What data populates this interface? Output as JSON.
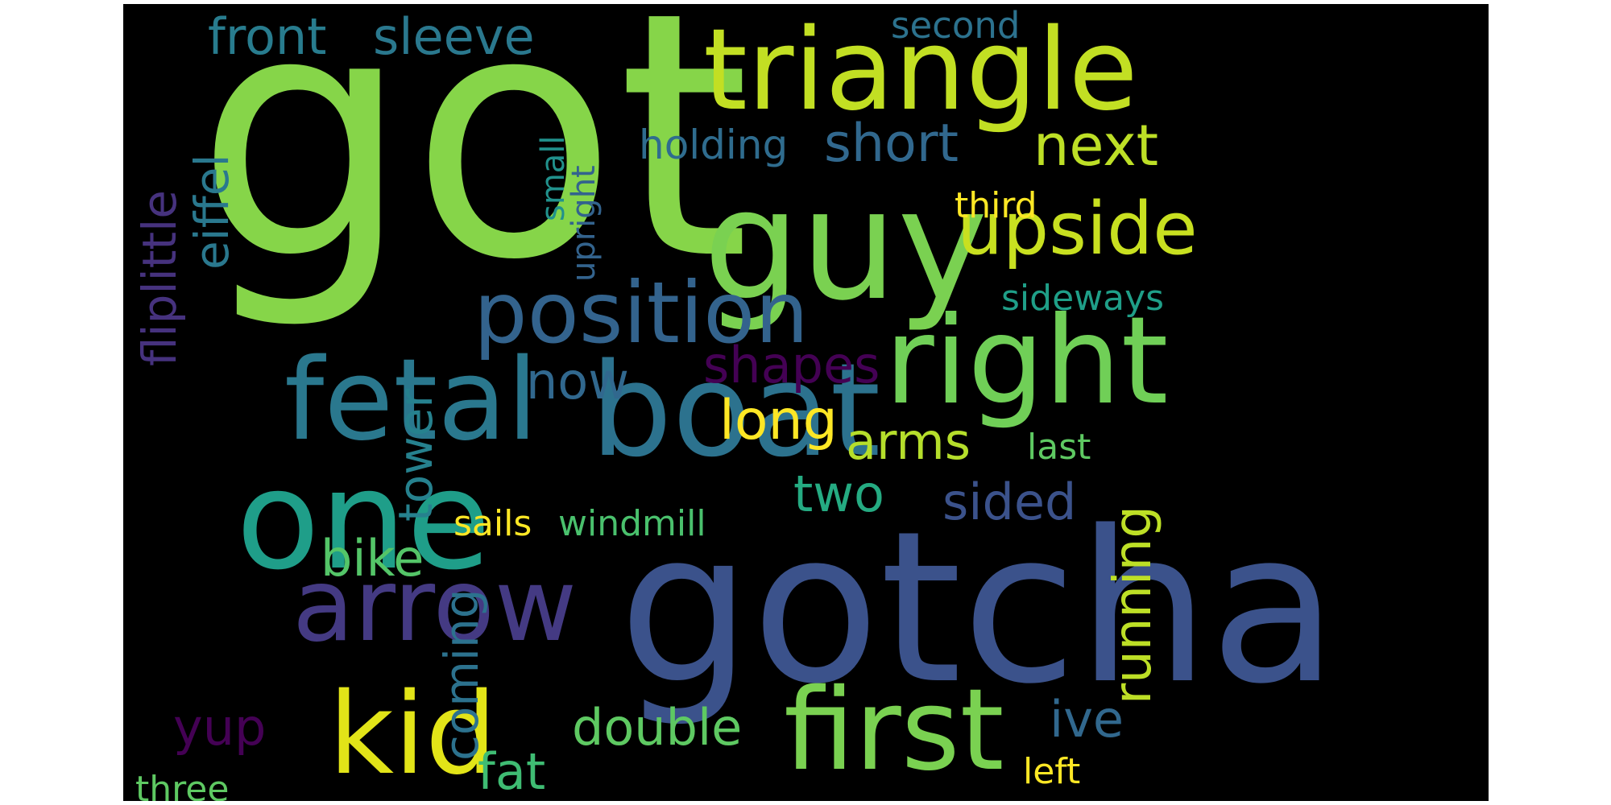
{
  "cloud": {
    "background": "#000000",
    "words": [
      {
        "text": "got",
        "color": "#86d549"
      },
      {
        "text": "gotcha",
        "color": "#3b528b"
      },
      {
        "text": "guy",
        "color": "#7ad151"
      },
      {
        "text": "triangle",
        "color": "#c2df23"
      },
      {
        "text": "boat",
        "color": "#2c728e"
      },
      {
        "text": "one",
        "color": "#1f9e89"
      },
      {
        "text": "right",
        "color": "#70cf57"
      },
      {
        "text": "first",
        "color": "#7ad151"
      },
      {
        "text": "fetal",
        "color": "#2a788e"
      },
      {
        "text": "arrow",
        "color": "#443a83"
      },
      {
        "text": "kid",
        "color": "#e2e418"
      },
      {
        "text": "position",
        "color": "#33638d"
      },
      {
        "text": "upside",
        "color": "#c8e020"
      },
      {
        "text": "next",
        "color": "#bddf26"
      },
      {
        "text": "short",
        "color": "#31688e"
      },
      {
        "text": "front",
        "color": "#287c8e"
      },
      {
        "text": "sleeve",
        "color": "#2a788e"
      },
      {
        "text": "second",
        "color": "#2c728e"
      },
      {
        "text": "holding",
        "color": "#2f6c8e"
      },
      {
        "text": "third",
        "color": "#fde725"
      },
      {
        "text": "sideways",
        "color": "#1f9f88"
      },
      {
        "text": "shapes",
        "color": "#440154"
      },
      {
        "text": "now",
        "color": "#31688e"
      },
      {
        "text": "long",
        "color": "#fde725"
      },
      {
        "text": "arms",
        "color": "#b5de2b"
      },
      {
        "text": "last",
        "color": "#5ec962"
      },
      {
        "text": "two",
        "color": "#25ab82"
      },
      {
        "text": "sided",
        "color": "#3b528b"
      },
      {
        "text": "running",
        "color": "#bddf26"
      },
      {
        "text": "bike",
        "color": "#54c568"
      },
      {
        "text": "sails",
        "color": "#fde725"
      },
      {
        "text": "windmill",
        "color": "#4ac16d"
      },
      {
        "text": "coming",
        "color": "#2c728e"
      },
      {
        "text": "tower",
        "color": "#26818e"
      },
      {
        "text": "eiffel",
        "color": "#2a788e"
      },
      {
        "text": "fliplittle",
        "color": "#46327e"
      },
      {
        "text": "small",
        "color": "#21918c"
      },
      {
        "text": "upright",
        "color": "#33638d"
      },
      {
        "text": "yup",
        "color": "#440154"
      },
      {
        "text": "double",
        "color": "#5ec962"
      },
      {
        "text": "fat",
        "color": "#3fbc73"
      },
      {
        "text": "ive",
        "color": "#31688e"
      },
      {
        "text": "left",
        "color": "#fde725"
      },
      {
        "text": "three",
        "color": "#5ec962"
      }
    ]
  }
}
